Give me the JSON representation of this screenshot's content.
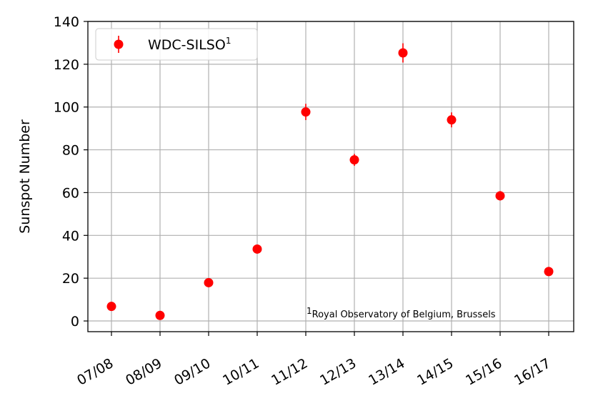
{
  "chart_data": {
    "type": "scatter",
    "categories": [
      "07/08",
      "08/09",
      "09/10",
      "10/11",
      "11/12",
      "12/13",
      "13/14",
      "14/15",
      "15/16",
      "16/17"
    ],
    "series": [
      {
        "name": "WDC-SILSO",
        "name_superscript": "1",
        "values": [
          6.8,
          2.6,
          17.9,
          33.6,
          97.7,
          75.3,
          125.3,
          94.0,
          58.5,
          23.1
        ],
        "errors": [
          1.2,
          1.0,
          1.8,
          1.5,
          3.8,
          2.8,
          4.5,
          3.5,
          2.2,
          1.2
        ],
        "color": "#ff0000"
      }
    ],
    "ylabel": "Sunspot Number",
    "xlabel": "",
    "ylim": [
      -5,
      140
    ],
    "yticks": [
      0,
      20,
      40,
      60,
      80,
      100,
      120,
      140
    ],
    "grid": true,
    "legend_position": "top-left",
    "annotation": {
      "superscript": "1",
      "text": "Royal Observatory of Belgium, Brussels"
    }
  }
}
